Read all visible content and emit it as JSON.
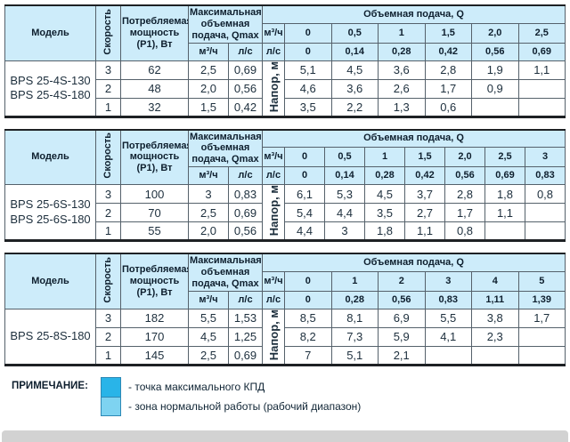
{
  "colors": {
    "header_bg": "#cdecfa",
    "zone_normal": "#7ed3f1",
    "zone_max": "#29b4e8",
    "border_thin": "#55616b",
    "border_thick": "#1e2124",
    "bottom_bar": "#d2d2d2"
  },
  "shared_headers": {
    "model": "Модель",
    "speed": "Скорость",
    "power": "Потребляемая мощность (Р1), Вт",
    "qmax": "Максимальная объемная подача, Qmax",
    "m3h": "м³/ч",
    "ls": "л/с",
    "flow": "Объемная подача, Q",
    "head": "Напор, м"
  },
  "tables": [
    {
      "models": [
        "BPS 25-4S-130",
        "BPS 25-4S-180"
      ],
      "flow_m3h": [
        "0",
        "0,5",
        "1",
        "1,5",
        "2,0",
        "2,5"
      ],
      "flow_ls": [
        "0",
        "0,14",
        "0,28",
        "0,42",
        "0,56",
        "0,69"
      ],
      "rows": [
        {
          "speed": "3",
          "power": "62",
          "qmax_m3h": "2,5",
          "qmax_ls": "0,69",
          "head": [
            {
              "v": "5,1",
              "z": "none"
            },
            {
              "v": "4,5",
              "z": "normal"
            },
            {
              "v": "3,6",
              "z": "normal"
            },
            {
              "v": "2,8",
              "z": "max"
            },
            {
              "v": "1,9",
              "z": "normal"
            },
            {
              "v": "1,1",
              "z": "none"
            }
          ]
        },
        {
          "speed": "2",
          "power": "48",
          "qmax_m3h": "2,0",
          "qmax_ls": "0,56",
          "head": [
            {
              "v": "4,6",
              "z": "none"
            },
            {
              "v": "3,6",
              "z": "normal"
            },
            {
              "v": "2,6",
              "z": "max"
            },
            {
              "v": "1,7",
              "z": "normal"
            },
            {
              "v": "0,9",
              "z": "none"
            },
            {
              "v": "",
              "z": "none"
            }
          ]
        },
        {
          "speed": "1",
          "power": "32",
          "qmax_m3h": "1,5",
          "qmax_ls": "0,42",
          "head": [
            {
              "v": "3,5",
              "z": "none"
            },
            {
              "v": "2,2",
              "z": "normal"
            },
            {
              "v": "1,3",
              "z": "max"
            },
            {
              "v": "0,6",
              "z": "normal"
            },
            {
              "v": "",
              "z": "none"
            },
            {
              "v": "",
              "z": "none"
            }
          ]
        }
      ]
    },
    {
      "models": [
        "BPS 25-6S-130",
        "BPS 25-6S-180"
      ],
      "flow_m3h": [
        "0",
        "0,5",
        "1",
        "1,5",
        "2,0",
        "2,5",
        "3"
      ],
      "flow_ls": [
        "0",
        "0,14",
        "0,28",
        "0,42",
        "0,56",
        "0,69",
        "0,83"
      ],
      "rows": [
        {
          "speed": "3",
          "power": "100",
          "qmax_m3h": "3",
          "qmax_ls": "0,83",
          "head": [
            {
              "v": "6,1",
              "z": "none"
            },
            {
              "v": "5,3",
              "z": "normal"
            },
            {
              "v": "4,5",
              "z": "normal"
            },
            {
              "v": "3,7",
              "z": "normal"
            },
            {
              "v": "2,8",
              "z": "max"
            },
            {
              "v": "1,8",
              "z": "normal"
            },
            {
              "v": "0,8",
              "z": "none"
            }
          ]
        },
        {
          "speed": "2",
          "power": "70",
          "qmax_m3h": "2,5",
          "qmax_ls": "0,69",
          "head": [
            {
              "v": "5,4",
              "z": "none"
            },
            {
              "v": "4,4",
              "z": "normal"
            },
            {
              "v": "3,5",
              "z": "normal"
            },
            {
              "v": "2,7",
              "z": "max"
            },
            {
              "v": "1,7",
              "z": "normal"
            },
            {
              "v": "1,1",
              "z": "none"
            },
            {
              "v": "",
              "z": "none"
            }
          ]
        },
        {
          "speed": "1",
          "power": "55",
          "qmax_m3h": "2,0",
          "qmax_ls": "0,56",
          "head": [
            {
              "v": "4,4",
              "z": "none"
            },
            {
              "v": "3",
              "z": "normal"
            },
            {
              "v": "1,8",
              "z": "max"
            },
            {
              "v": "1,1",
              "z": "normal"
            },
            {
              "v": "0,8",
              "z": "none"
            },
            {
              "v": "",
              "z": "none"
            },
            {
              "v": "",
              "z": "none"
            }
          ]
        }
      ]
    },
    {
      "models": [
        "BPS 25-8S-180"
      ],
      "flow_m3h": [
        "0",
        "1",
        "2",
        "3",
        "4",
        "5"
      ],
      "flow_ls": [
        "0",
        "0,28",
        "0,56",
        "0,83",
        "1,11",
        "1,39"
      ],
      "rows": [
        {
          "speed": "3",
          "power": "182",
          "qmax_m3h": "5,5",
          "qmax_ls": "1,53",
          "head": [
            {
              "v": "8,5",
              "z": "none"
            },
            {
              "v": "8,1",
              "z": "normal"
            },
            {
              "v": "6,9",
              "z": "normal"
            },
            {
              "v": "5,5",
              "z": "max"
            },
            {
              "v": "3,8",
              "z": "normal"
            },
            {
              "v": "1,7",
              "z": "none"
            }
          ]
        },
        {
          "speed": "2",
          "power": "170",
          "qmax_m3h": "4,5",
          "qmax_ls": "1,25",
          "head": [
            {
              "v": "8,2",
              "z": "none"
            },
            {
              "v": "7,3",
              "z": "normal"
            },
            {
              "v": "5,9",
              "z": "max"
            },
            {
              "v": "4,1",
              "z": "normal"
            },
            {
              "v": "2,3",
              "z": "normal"
            },
            {
              "v": "",
              "z": "none"
            }
          ]
        },
        {
          "speed": "1",
          "power": "145",
          "qmax_m3h": "2,5",
          "qmax_ls": "0,69",
          "head": [
            {
              "v": "7",
              "z": "none"
            },
            {
              "v": "5,1",
              "z": "max"
            },
            {
              "v": "2,1",
              "z": "normal"
            },
            {
              "v": "",
              "z": "none"
            },
            {
              "v": "",
              "z": "none"
            },
            {
              "v": "",
              "z": "none"
            }
          ]
        }
      ]
    }
  ],
  "legend": {
    "title": "ПРИМЕЧАНИЕ:",
    "items": [
      {
        "zone": "max",
        "label": "- точка максимального КПД"
      },
      {
        "zone": "normal",
        "label": "- зона нормальной работы (рабочий диапазон)"
      }
    ]
  }
}
